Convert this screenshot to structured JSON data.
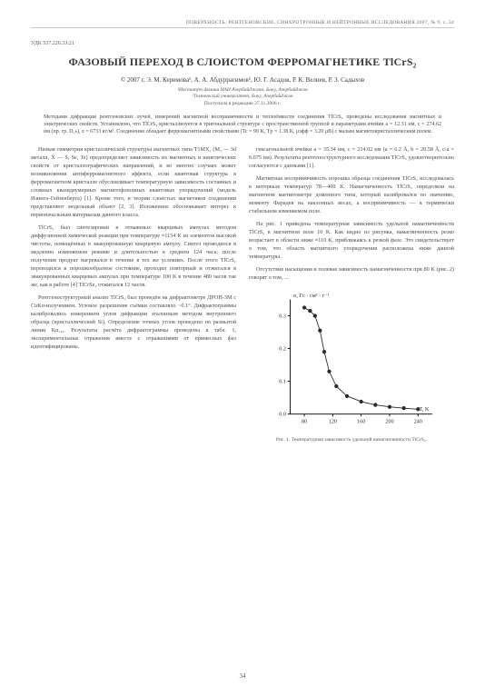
{
  "running_head": "ПОВЕРХНОСТЬ. РЕНТГЕНОВСКИЕ, СИНХРОТРОННЫЕ И НЕЙТРОННЫЕ ИССЛЕДОВАНИЯ 2007, № 9, с. 34",
  "udc": "УДК 537.226.33:21",
  "title": "ФАЗОВЫЙ ПЕРЕХОД В СЛОИСТОМ ФЕРРОМАГНЕТИКЕ TlCrS₂",
  "authors": "© 2007 г.  Э. М. Керимова¹, А. А. Абдуррагимов¹, Ю. Г. Асадов, Р. К. Велиев, Р. З. Садыхов",
  "affil1": "¹Институт физики НАН Азербайджана, Баку, Азербайджан",
  "affil2": "²Технический университет, Баку, Азербайджан",
  "received": "Поступила в редакцию 27.11.2006 г.",
  "abstract": "Методами дифракции рентгеновских лучей, измерений магнитной восприимчивости и теплоёмкости соединения TlCrS₂ проведены исследования магнитных и электрических свойств. Установлено, что TlCrS₂ кристаллизуется в тригональной структуре с пространственной группой и параметрами ячейки a = 12.31 нм, c = 274.62 нм (пр. гр. D₅ₕ), z = 6733 кг/м³. Соединение обладает ферромагнитными свойствами (Tc = 90 K, Tp = 1.38 K, μэфф = 3.20 μB) с малым магнитокристаллическим полем.",
  "col1": [
    "Низкая симметрия кристаллической структуры магнитных типа T1MX₂ (M₂ — 3d металл, X — S, Se, Te) предопределяет зависимость их магнитных и кинетических свойств от кристаллографических направлений, и во многих случаях может возникновения антиферромагнитного эффекта, если квантовая структура в ферромагнитном кристалле обусловливает температурную зависимость составных и сложных квазидвумерных магнитофононных квантовых упорядочений (модель Изинга–Гейзенберга) [1]. Кроме того, в теории слоистых магнетиков соединения представляют модельный объект [2, 3]. Изложенное обосновывает интерес к первоначальным материалам данного класса.",
    "TlCrS₂ был синтезирован в отпаянных кварцевых ампулах методом диффузионной химической реакции при температуре ≈1154 K из элементов высокой чистоты, помещённых в эвакуированную кварцевую ампулу. Синтез проводился в медленно изменяемом режиме и длительностью в среднем 124 часа; после получения продукт нагревался в течение в тех же условиях. После этого TlCrS₂ переводился в порошкообразное состояние, проходил повторный и отжигался в эвакуированных кварцевых ампулах при температуре 100 K в течение 480 часов так же, как в работе [4] TlCrSe₂ отжигался 12 часов.",
    "Рентгеноструктурный анализ TlCrS₂ был проведён на дифрактометре ДРОН-3M с CuKα-излучением. Угловое разрешение съёмки составляло ~0.1°. Дифрактограммы калибровались измерением углов дифракции эталонным методом внутреннего образца (кристаллический Si). Определение точных углов проведено по размытой линии Kα₁,₂. Результаты расчёта дифрактограммы проведены в табл. 1, экспериментальные отражения вместе с отражениями от примесных фаз идентифицированы."
  ],
  "col2": [
    "гексагональной ячейки a = 35.34 нм, c = 214.02 нм (a = 6.2 Å, b = 20.58 Å, c/a = 6.075 нм). Результаты рентгеноструктурного исследования TlCrS₂ удовлетворительно согласуются с данными [1].",
    "Магнитная восприимчивость порошка образца соединения TlCrS₂ исследовалась в интервале температур 78—400 K. Намагниченность TlCrS₂ определяли на магнитном магнитометре доменного типа, который калибровался по значению, моменту Фарадея на наклонных весах, а восприимчивость — в термически стабильном изменяемом поле.",
    "На рис. 1 приведена температурная зависимость удельной намагниченности TlCrS₂ в магнитном поле 10 K. Как видно из рисунка, намагниченность резко возрастает в области ниже ≈110 K, приближаясь к резкой фазе. Это свидетельствует о том, что область магнитного упорядочения расположена ниже данной температуры.",
    "Отсутствие насыщения и полевая зависимость намагниченности при 80 K (рис. 2) говорят о том, ..."
  ],
  "figure": {
    "type": "scatter-line",
    "x_label": "T, K",
    "y_label": "σ, Гс · см³ · г⁻¹",
    "xlim": [
      60,
      260
    ],
    "ylim": [
      0.0,
      0.35
    ],
    "yticks": [
      0.0,
      0.1,
      0.2,
      0.3
    ],
    "xticks": [
      80,
      120,
      160,
      200,
      240
    ],
    "points": [
      {
        "x": 80,
        "y": 0.325
      },
      {
        "x": 88,
        "y": 0.315
      },
      {
        "x": 95,
        "y": 0.3
      },
      {
        "x": 102,
        "y": 0.255
      },
      {
        "x": 108,
        "y": 0.19
      },
      {
        "x": 115,
        "y": 0.13
      },
      {
        "x": 125,
        "y": 0.085
      },
      {
        "x": 140,
        "y": 0.055
      },
      {
        "x": 160,
        "y": 0.038
      },
      {
        "x": 180,
        "y": 0.028
      },
      {
        "x": 200,
        "y": 0.022
      },
      {
        "x": 220,
        "y": 0.018
      },
      {
        "x": 240,
        "y": 0.015
      }
    ],
    "line_color": "#2a2a2a",
    "marker_color": "#2a2a2a",
    "marker_size": 2.4,
    "line_width": 1,
    "axis_color": "#000000",
    "background": "#ffffff"
  },
  "caption": "Рис. 1. Температурная зависимость удельной намагниченности TlCrS₂.",
  "pagenum": "34"
}
